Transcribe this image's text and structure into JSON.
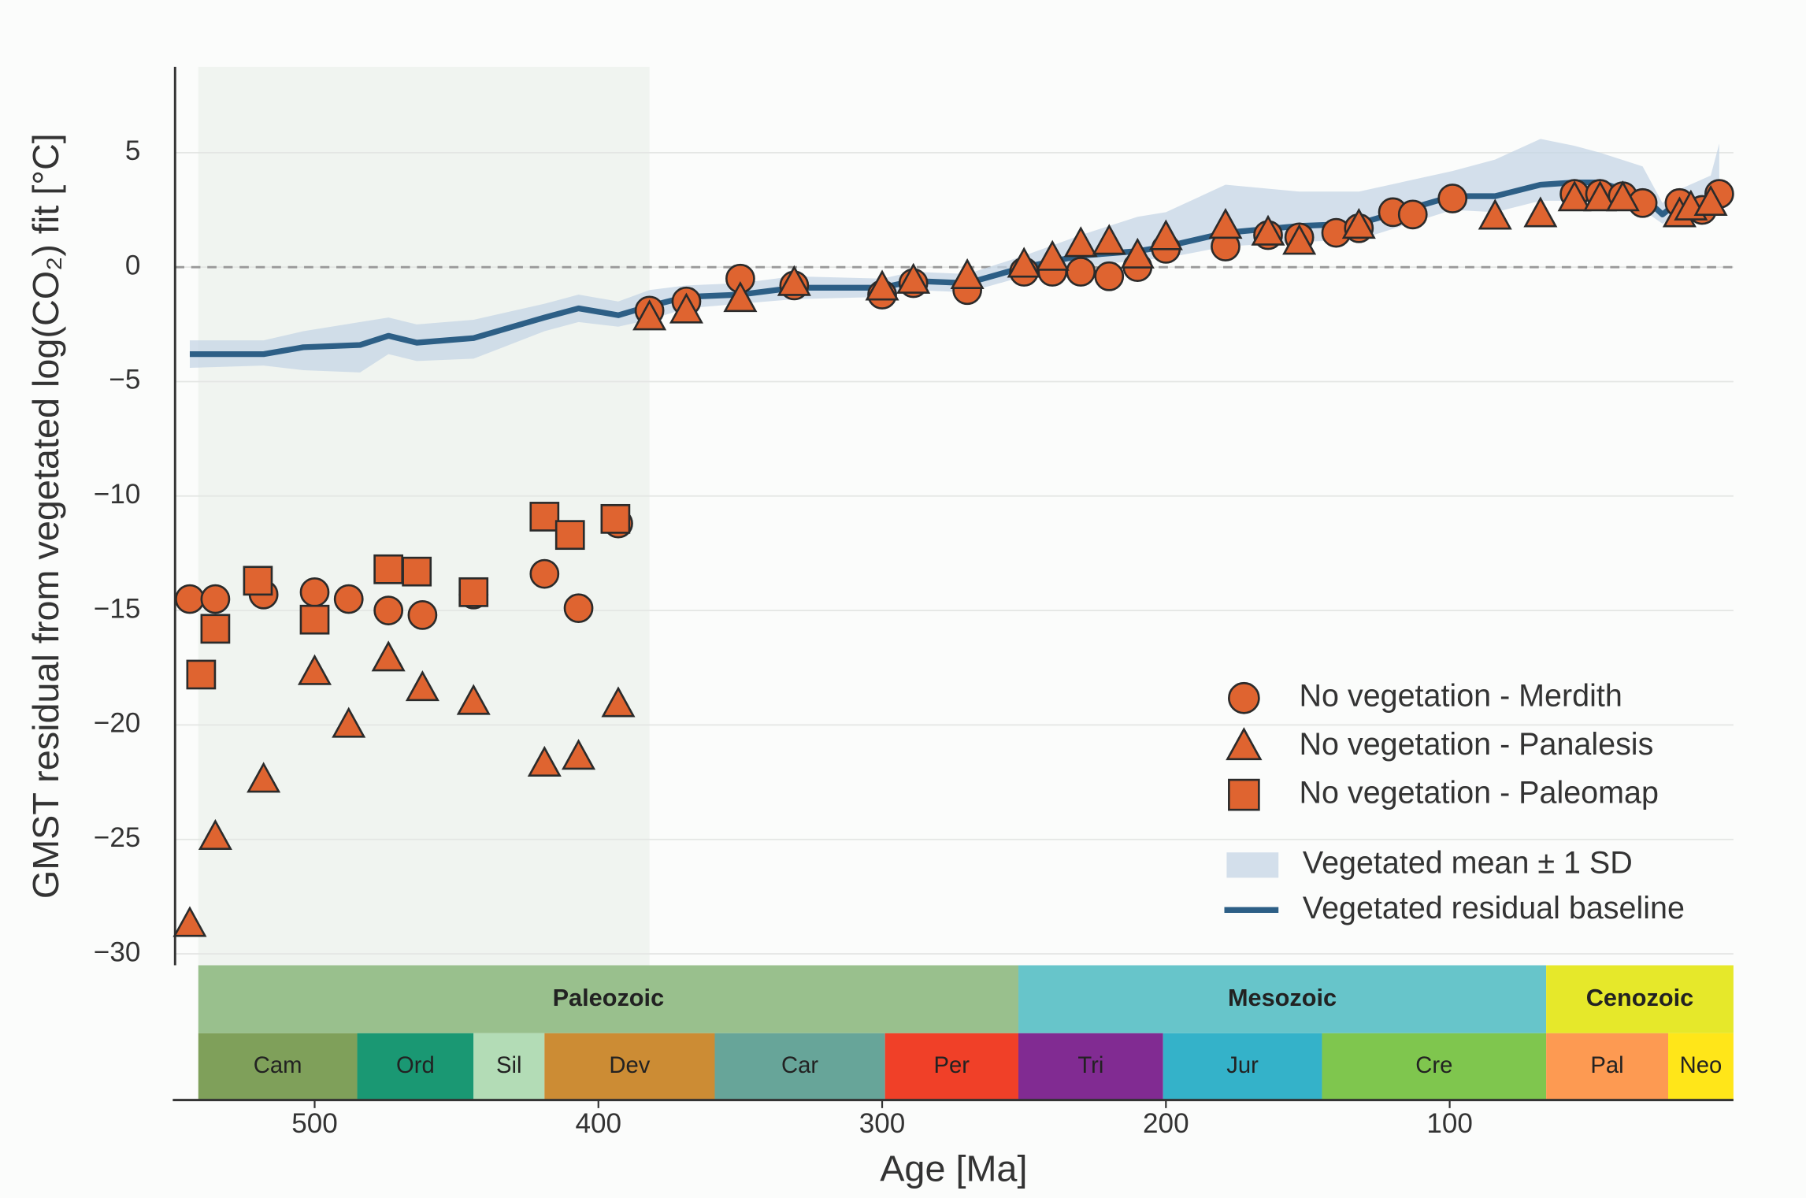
{
  "chart_data": {
    "type": "scatter",
    "x_label": "Age [Ma]",
    "y_label": "GMST residual from vegetated log(CO₂) fit [°C]",
    "xlim": [
      550,
      0
    ],
    "ylim": [
      -30.5,
      8.75
    ],
    "xticks": [
      500,
      400,
      300,
      200,
      100
    ],
    "yticks": [
      5,
      0,
      {
        "value": -5,
        "label": "−5"
      },
      {
        "value": -10,
        "label": "−10"
      },
      {
        "value": -15,
        "label": "−15"
      },
      {
        "value": -20,
        "label": "−20"
      },
      {
        "value": -25,
        "label": "−25"
      },
      {
        "value": -30,
        "label": "−30"
      }
    ],
    "grid": true,
    "reference_line": 0,
    "shaded_span": [
      541,
      382
    ],
    "legend": "lower right",
    "series": [
      {
        "name": "No vegetation - Merdith",
        "marker": "circle",
        "color": "#df6430",
        "edge_color": "#2b2b2b",
        "x": [
          544,
          535,
          518,
          500,
          488,
          474,
          462,
          444,
          419,
          407,
          393,
          382,
          369,
          350,
          331,
          300,
          289,
          270,
          250,
          240,
          230,
          220,
          210,
          200,
          179,
          164,
          153,
          140,
          132,
          120,
          113,
          99,
          56,
          47,
          39,
          32,
          19,
          11,
          5
        ],
        "values": [
          -14.5,
          -14.5,
          -14.3,
          -14.2,
          -14.5,
          -15.0,
          -15.2,
          -14.3,
          -13.4,
          -14.9,
          -11.2,
          -1.9,
          -1.5,
          -0.5,
          -0.8,
          -1.2,
          -0.7,
          -1.0,
          -0.2,
          -0.2,
          -0.2,
          -0.4,
          0,
          0.8,
          0.9,
          1.4,
          1.3,
          1.5,
          1.7,
          2.4,
          2.3,
          3.0,
          3.2,
          3.2,
          3.1,
          2.8,
          2.8,
          2.5,
          3.2
        ]
      },
      {
        "name": "No vegetation - Panalesis",
        "marker": "triangle",
        "color": "#df6430",
        "edge_color": "#2b2b2b",
        "x": [
          544,
          535,
          518,
          500,
          488,
          474,
          462,
          444,
          419,
          407,
          393,
          382,
          369,
          350,
          331,
          300,
          289,
          270,
          250,
          240,
          230,
          220,
          210,
          200,
          179,
          164,
          153,
          132,
          84,
          68,
          56,
          47,
          39,
          19,
          15,
          8
        ],
        "values": [
          -28.7,
          -24.9,
          -22.4,
          -17.7,
          -20.0,
          -17.1,
          -18.4,
          -19.0,
          -21.7,
          -21.4,
          -19.1,
          -2.2,
          -1.9,
          -1.4,
          -0.7,
          -0.9,
          -0.6,
          -0.4,
          0.1,
          0.4,
          1.0,
          1.1,
          0.5,
          1.3,
          1.8,
          1.5,
          1.1,
          1.8,
          2.2,
          2.3,
          3.0,
          3.0,
          3.0,
          2.3,
          2.6,
          2.8
        ]
      },
      {
        "name": "No vegetation - Paleomap",
        "marker": "square",
        "color": "#df6430",
        "edge_color": "#2b2b2b",
        "x": [
          540,
          535,
          520,
          500,
          474,
          464,
          444,
          419,
          410,
          394
        ],
        "values": [
          -17.8,
          -15.8,
          -13.7,
          -15.4,
          -13.2,
          -13.3,
          -14.2,
          -10.9,
          -11.7,
          -11.0
        ]
      },
      {
        "name": "Vegetated mean ± 1 SD",
        "kind": "band",
        "color": "#c5d6e6",
        "x": [
          544,
          518,
          504,
          484,
          474,
          464,
          444,
          419,
          407,
          393,
          382,
          369,
          350,
          331,
          300,
          289,
          270,
          250,
          230,
          210,
          200,
          179,
          153,
          132,
          99,
          84,
          68,
          56,
          47,
          32,
          25,
          19,
          8,
          5
        ],
        "lower": [
          -4.4,
          -4.3,
          -4.5,
          -4.6,
          -3.8,
          -4.1,
          -4.0,
          -2.8,
          -2.4,
          -2.6,
          -2.3,
          -1.8,
          -1.6,
          -1.4,
          -1.3,
          -1.0,
          -1.1,
          -0.4,
          0.0,
          0.3,
          0.4,
          0.9,
          1.1,
          1.2,
          2.5,
          2.4,
          2.9,
          2.9,
          2.9,
          2.5,
          1.9,
          2.3,
          2.2,
          2.4
        ],
        "upper": [
          -3.2,
          -3.2,
          -2.8,
          -2.4,
          -2.2,
          -2.5,
          -2.3,
          -1.6,
          -1.2,
          -1.5,
          -1.0,
          -0.8,
          -0.7,
          -0.4,
          -0.5,
          -0.2,
          -0.3,
          0.5,
          1.4,
          2.2,
          2.4,
          3.6,
          3.3,
          3.3,
          4.2,
          4.7,
          5.6,
          5.3,
          5.0,
          4.4,
          2.8,
          3.4,
          4.0,
          5.4
        ]
      },
      {
        "name": "Vegetated residual baseline",
        "kind": "line",
        "color": "#2d5f86",
        "x": [
          544,
          518,
          504,
          484,
          474,
          464,
          444,
          419,
          407,
          393,
          382,
          369,
          350,
          331,
          300,
          289,
          270,
          250,
          230,
          210,
          200,
          179,
          153,
          132,
          99,
          84,
          68,
          56,
          47,
          32,
          25,
          19,
          8,
          5
        ],
        "values": [
          -3.8,
          -3.8,
          -3.5,
          -3.4,
          -3.0,
          -3.3,
          -3.1,
          -2.2,
          -1.8,
          -2.1,
          -1.7,
          -1.3,
          -1.2,
          -0.9,
          -0.9,
          -0.6,
          -0.7,
          0,
          0.5,
          0.7,
          0.9,
          1.5,
          1.8,
          1.9,
          3.1,
          3.1,
          3.6,
          3.7,
          3.7,
          3.1,
          2.3,
          2.9,
          3.0,
          3.1
        ]
      }
    ],
    "timescale": {
      "eras": [
        {
          "name": "Paleozoic",
          "start": 541,
          "end": 252,
          "color": "#99c08d"
        },
        {
          "name": "Mesozoic",
          "start": 252,
          "end": 66,
          "color": "#67c5ca"
        },
        {
          "name": "Cenozoic",
          "start": 66,
          "end": 0,
          "color": "#e6e82a"
        }
      ],
      "periods": [
        {
          "name": "Cam",
          "start": 541,
          "end": 485,
          "color": "#7fa05a"
        },
        {
          "name": "Ord",
          "start": 485,
          "end": 444,
          "color": "#1a9873"
        },
        {
          "name": "Sil",
          "start": 444,
          "end": 419,
          "color": "#b3dcb6"
        },
        {
          "name": "Dev",
          "start": 419,
          "end": 359,
          "color": "#cc8c34"
        },
        {
          "name": "Car",
          "start": 359,
          "end": 299,
          "color": "#67a599"
        },
        {
          "name": "Per",
          "start": 299,
          "end": 252,
          "color": "#f04028"
        },
        {
          "name": "Tri",
          "start": 252,
          "end": 201,
          "color": "#812b92"
        },
        {
          "name": "Jur",
          "start": 201,
          "end": 145,
          "color": "#34b2c9"
        },
        {
          "name": "Cre",
          "start": 145,
          "end": 66,
          "color": "#7fc64e"
        },
        {
          "name": "Pal",
          "start": 66,
          "end": 23,
          "color": "#fd9a52"
        },
        {
          "name": "Neo",
          "start": 23,
          "end": 0,
          "color": "#ffe619"
        }
      ]
    }
  }
}
